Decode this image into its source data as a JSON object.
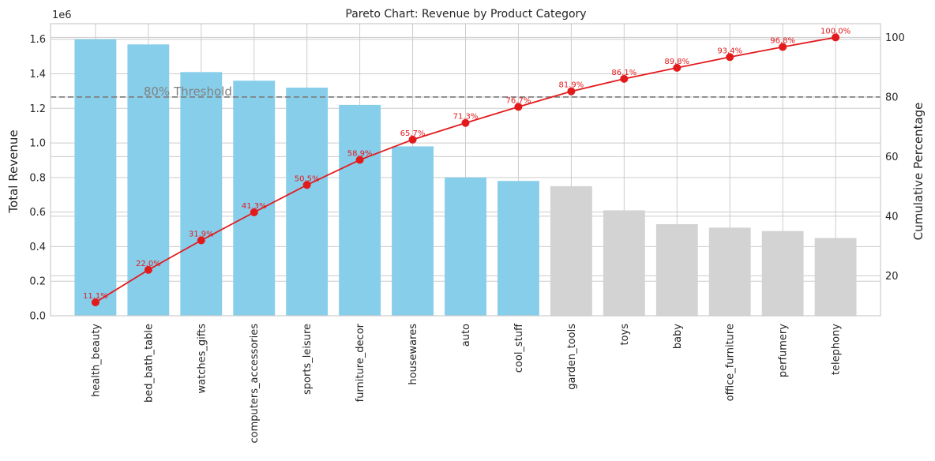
{
  "chart_data": {
    "type": "bar",
    "title": "Pareto Chart: Revenue by Product Category",
    "ylabel": "Total Revenue",
    "y2label": "Cumulative Percentage",
    "y_offset_text": "1e6",
    "ylim": [
      0,
      1.69
    ],
    "y2lim": [
      6.6,
      104.6
    ],
    "y_ticks": [
      "0.0",
      "0.2",
      "0.4",
      "0.6",
      "0.8",
      "1.0",
      "1.2",
      "1.4",
      "1.6"
    ],
    "y2_ticks": [
      "20",
      "40",
      "60",
      "80",
      "100"
    ],
    "grid": true,
    "categories": [
      "health_beauty",
      "bed_bath_table",
      "watches_gifts",
      "computers_accessories",
      "sports_leisure",
      "furniture_decor",
      "housewares",
      "auto",
      "cool_stuff",
      "garden_tools",
      "toys",
      "baby",
      "office_furniture",
      "perfumery",
      "telephony"
    ],
    "series": [
      {
        "type": "bar",
        "values": [
          1.6,
          1.57,
          1.41,
          1.36,
          1.32,
          1.22,
          0.98,
          0.8,
          0.78,
          0.75,
          0.61,
          0.53,
          0.51,
          0.49,
          0.45
        ],
        "highlight_count": 9,
        "colors": {
          "highlight": "#87ceeb",
          "rest": "#d3d3d3"
        }
      },
      {
        "type": "line",
        "axis": "secondary",
        "color": "#e31a1c",
        "values": [
          11.1,
          22.0,
          31.9,
          41.3,
          50.5,
          58.9,
          65.7,
          71.3,
          76.7,
          81.9,
          86.1,
          89.8,
          93.4,
          96.8,
          100.0
        ],
        "labels": [
          "11.1%",
          "22.0%",
          "31.9%",
          "41.3%",
          "50.5%",
          "58.9%",
          "65.7%",
          "71.3%",
          "76.7%",
          "81.9%",
          "86.1%",
          "89.8%",
          "93.4%",
          "96.8%",
          "100.0%"
        ]
      }
    ],
    "threshold": {
      "value": 80,
      "label": "80% Threshold",
      "color": "#808080"
    }
  }
}
